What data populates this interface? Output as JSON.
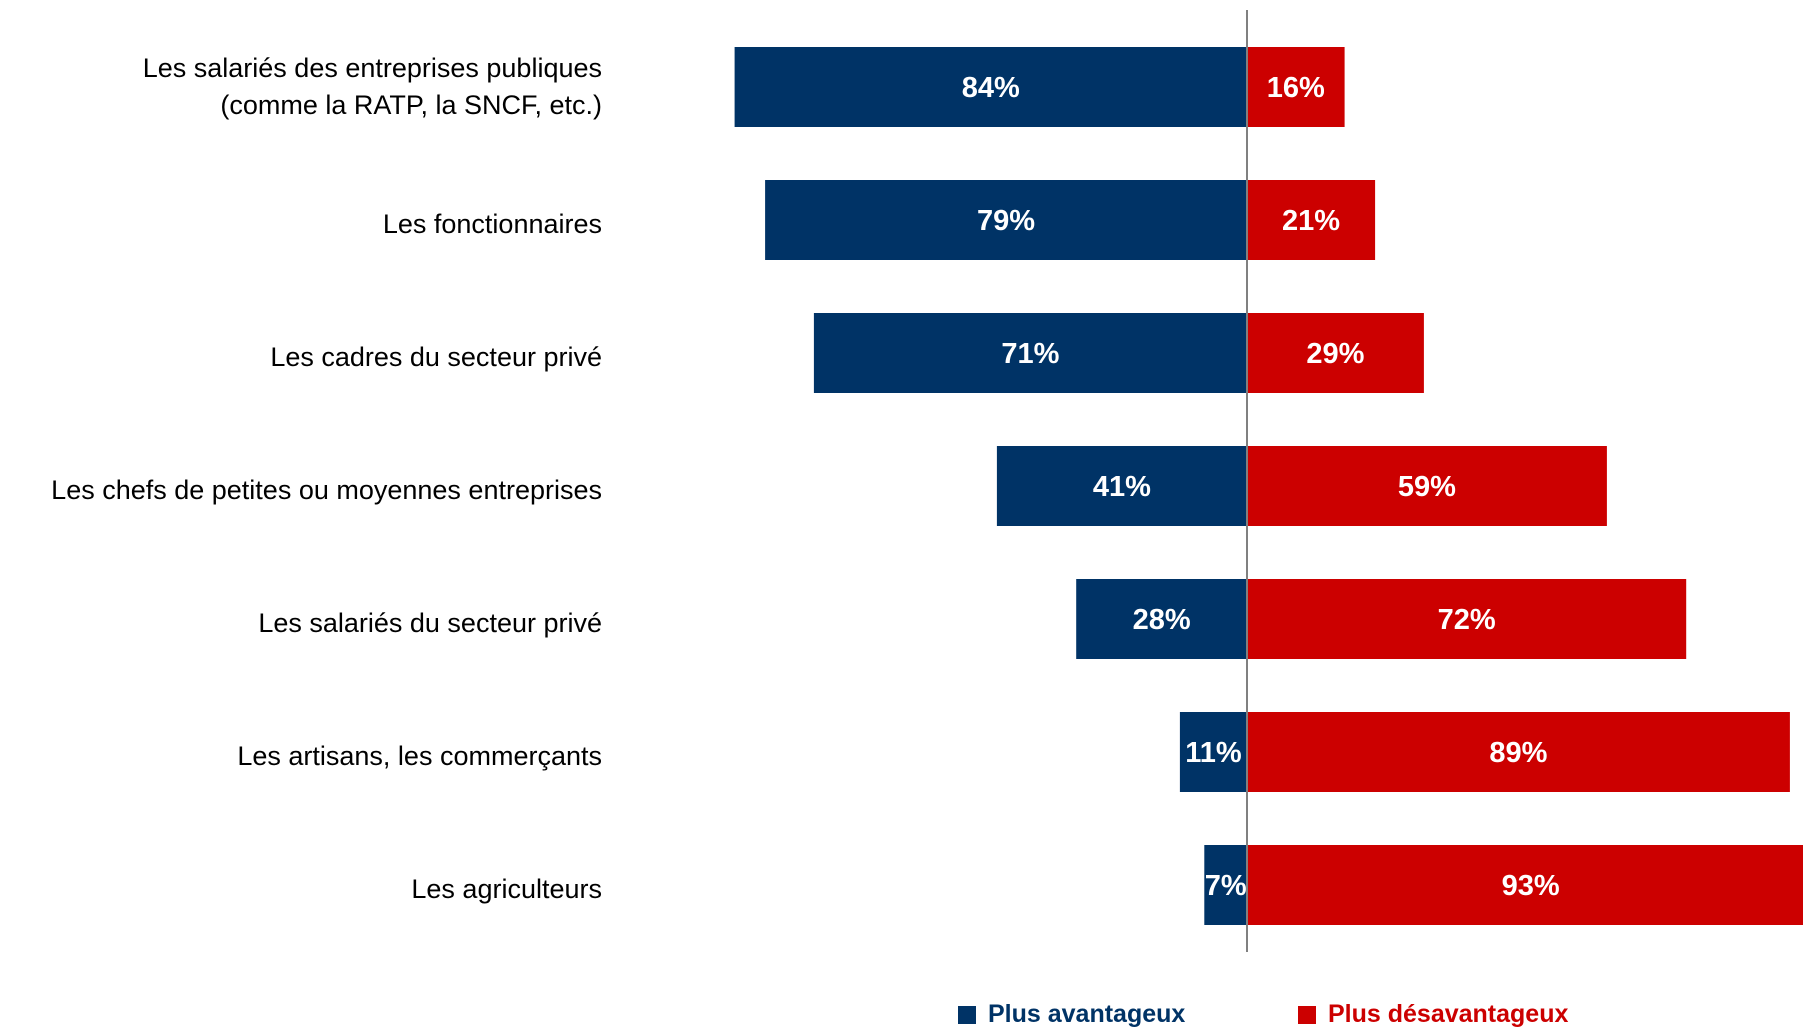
{
  "chart_data": {
    "type": "bar",
    "orientation": "horizontal-diverging",
    "title": "",
    "categories": [
      "Les salariés des entreprises publiques\n(comme la RATP, la SNCF, etc.)",
      "Les fonctionnaires",
      "Les cadres du secteur privé",
      "Les chefs de petites ou moyennes entreprises",
      "Les salariés du secteur privé",
      "Les artisans, les commerçants",
      "Les agriculteurs"
    ],
    "series": [
      {
        "name": "Plus avantageux",
        "color": "#003366",
        "values": [
          84,
          79,
          71,
          41,
          28,
          11,
          7
        ],
        "labels": [
          "84%",
          "79%",
          "71%",
          "41%",
          "28%",
          "11%",
          "7%"
        ]
      },
      {
        "name": "Plus désavantageux",
        "color": "#cc0000",
        "values": [
          16,
          21,
          29,
          59,
          72,
          89,
          93
        ],
        "labels": [
          "16%",
          "21%",
          "29%",
          "59%",
          "72%",
          "89%",
          "93%"
        ]
      }
    ],
    "value_unit": "%",
    "legend_position": "bottom",
    "grid": false
  }
}
